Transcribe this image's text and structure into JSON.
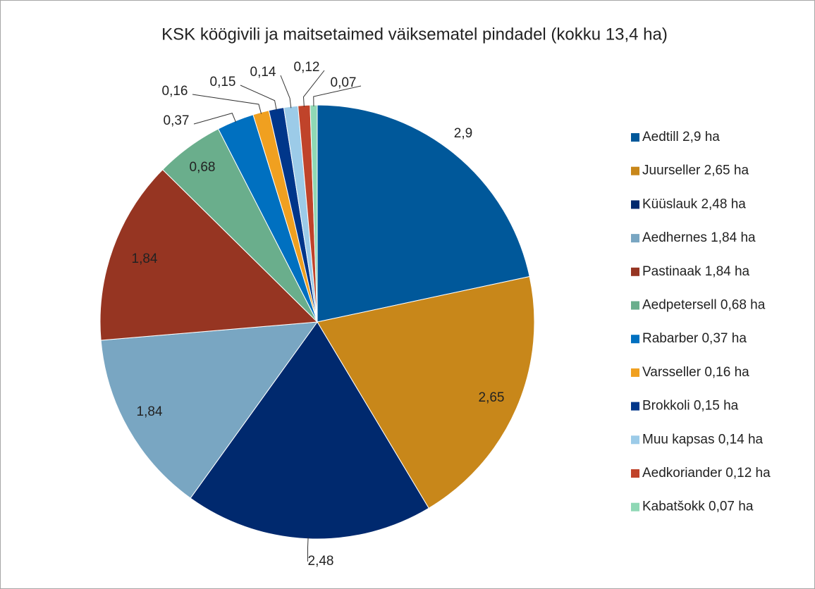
{
  "chart_data": {
    "type": "pie",
    "title": "KSK köögivili ja maitsetaimed väiksematel pindadel (kokku 13,4 ha)",
    "categories": [
      "Aedtill 2,9 ha",
      "Juurseller 2,65 ha",
      "Küüslauk 2,48 ha",
      "Aedhernes 1,84 ha",
      "Pastinaak 1,84 ha",
      "Aedpetersell 0,68 ha",
      "Rabarber 0,37 ha",
      "Varsseller 0,16 ha",
      "Brokkoli 0,15 ha",
      "Muu kapsas 0,14 ha",
      "Aedkoriander 0,12 ha",
      "Kabatšokk 0,07 ha"
    ],
    "values": [
      2.9,
      2.65,
      2.48,
      1.84,
      1.84,
      0.68,
      0.37,
      0.16,
      0.15,
      0.14,
      0.12,
      0.07
    ],
    "value_labels": [
      "2,9",
      "2,65",
      "2,48",
      "1,84",
      "1,84",
      "0,68",
      "0,37",
      "0,16",
      "0,15",
      "0,14",
      "0,12",
      "0,07"
    ],
    "colors": [
      "#00589a",
      "#c8871a",
      "#00296e",
      "#79a6c2",
      "#963522",
      "#6aae8c",
      "#0070c0",
      "#f0a020",
      "#00368a",
      "#9ccbe8",
      "#c0432a",
      "#8fd8b5"
    ],
    "legend": "right"
  }
}
